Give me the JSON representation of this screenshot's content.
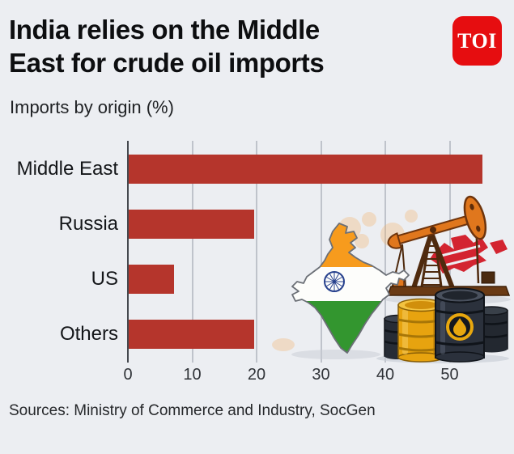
{
  "header": {
    "title_line1": "India relies on the Middle",
    "title_line2": "East for crude oil imports",
    "subtitle": "Imports by origin (%)",
    "logo_text": "TOI"
  },
  "footer": {
    "sources": "Sources: Ministry of Commerce and Industry, SocGen"
  },
  "colors": {
    "background": "#eceef2",
    "bar": "#b5352c",
    "logo_red": "#e60d10",
    "gridline": "#bfc3cb",
    "axis": "#45494f",
    "flag_saffron": "#f79b1d",
    "flag_green": "#33962f",
    "chakra_blue": "#27418d",
    "pump_orange": "#e0771d",
    "barrel_gold": "#e7a30f",
    "barrel_black": "#2b313c"
  },
  "illustration": {
    "elements": [
      "india-map-flag",
      "oil-pump-jack",
      "oil-barrels"
    ]
  },
  "chart_data": {
    "type": "bar",
    "orientation": "horizontal",
    "title": "India relies on the Middle East for crude oil imports",
    "subtitle": "Imports by origin (%)",
    "categories": [
      "Middle East",
      "Russia",
      "US",
      "Others"
    ],
    "values": [
      55,
      19.5,
      7,
      19.5
    ],
    "unit": "%",
    "xlabel": "",
    "ylabel": "",
    "xticks": [
      0,
      10,
      20,
      30,
      40,
      50
    ],
    "xlim": [
      0,
      60
    ],
    "grid": true,
    "legend": false,
    "bar_color": "#b5352c",
    "source": "Sources: Ministry of Commerce and Industry, SocGen"
  }
}
